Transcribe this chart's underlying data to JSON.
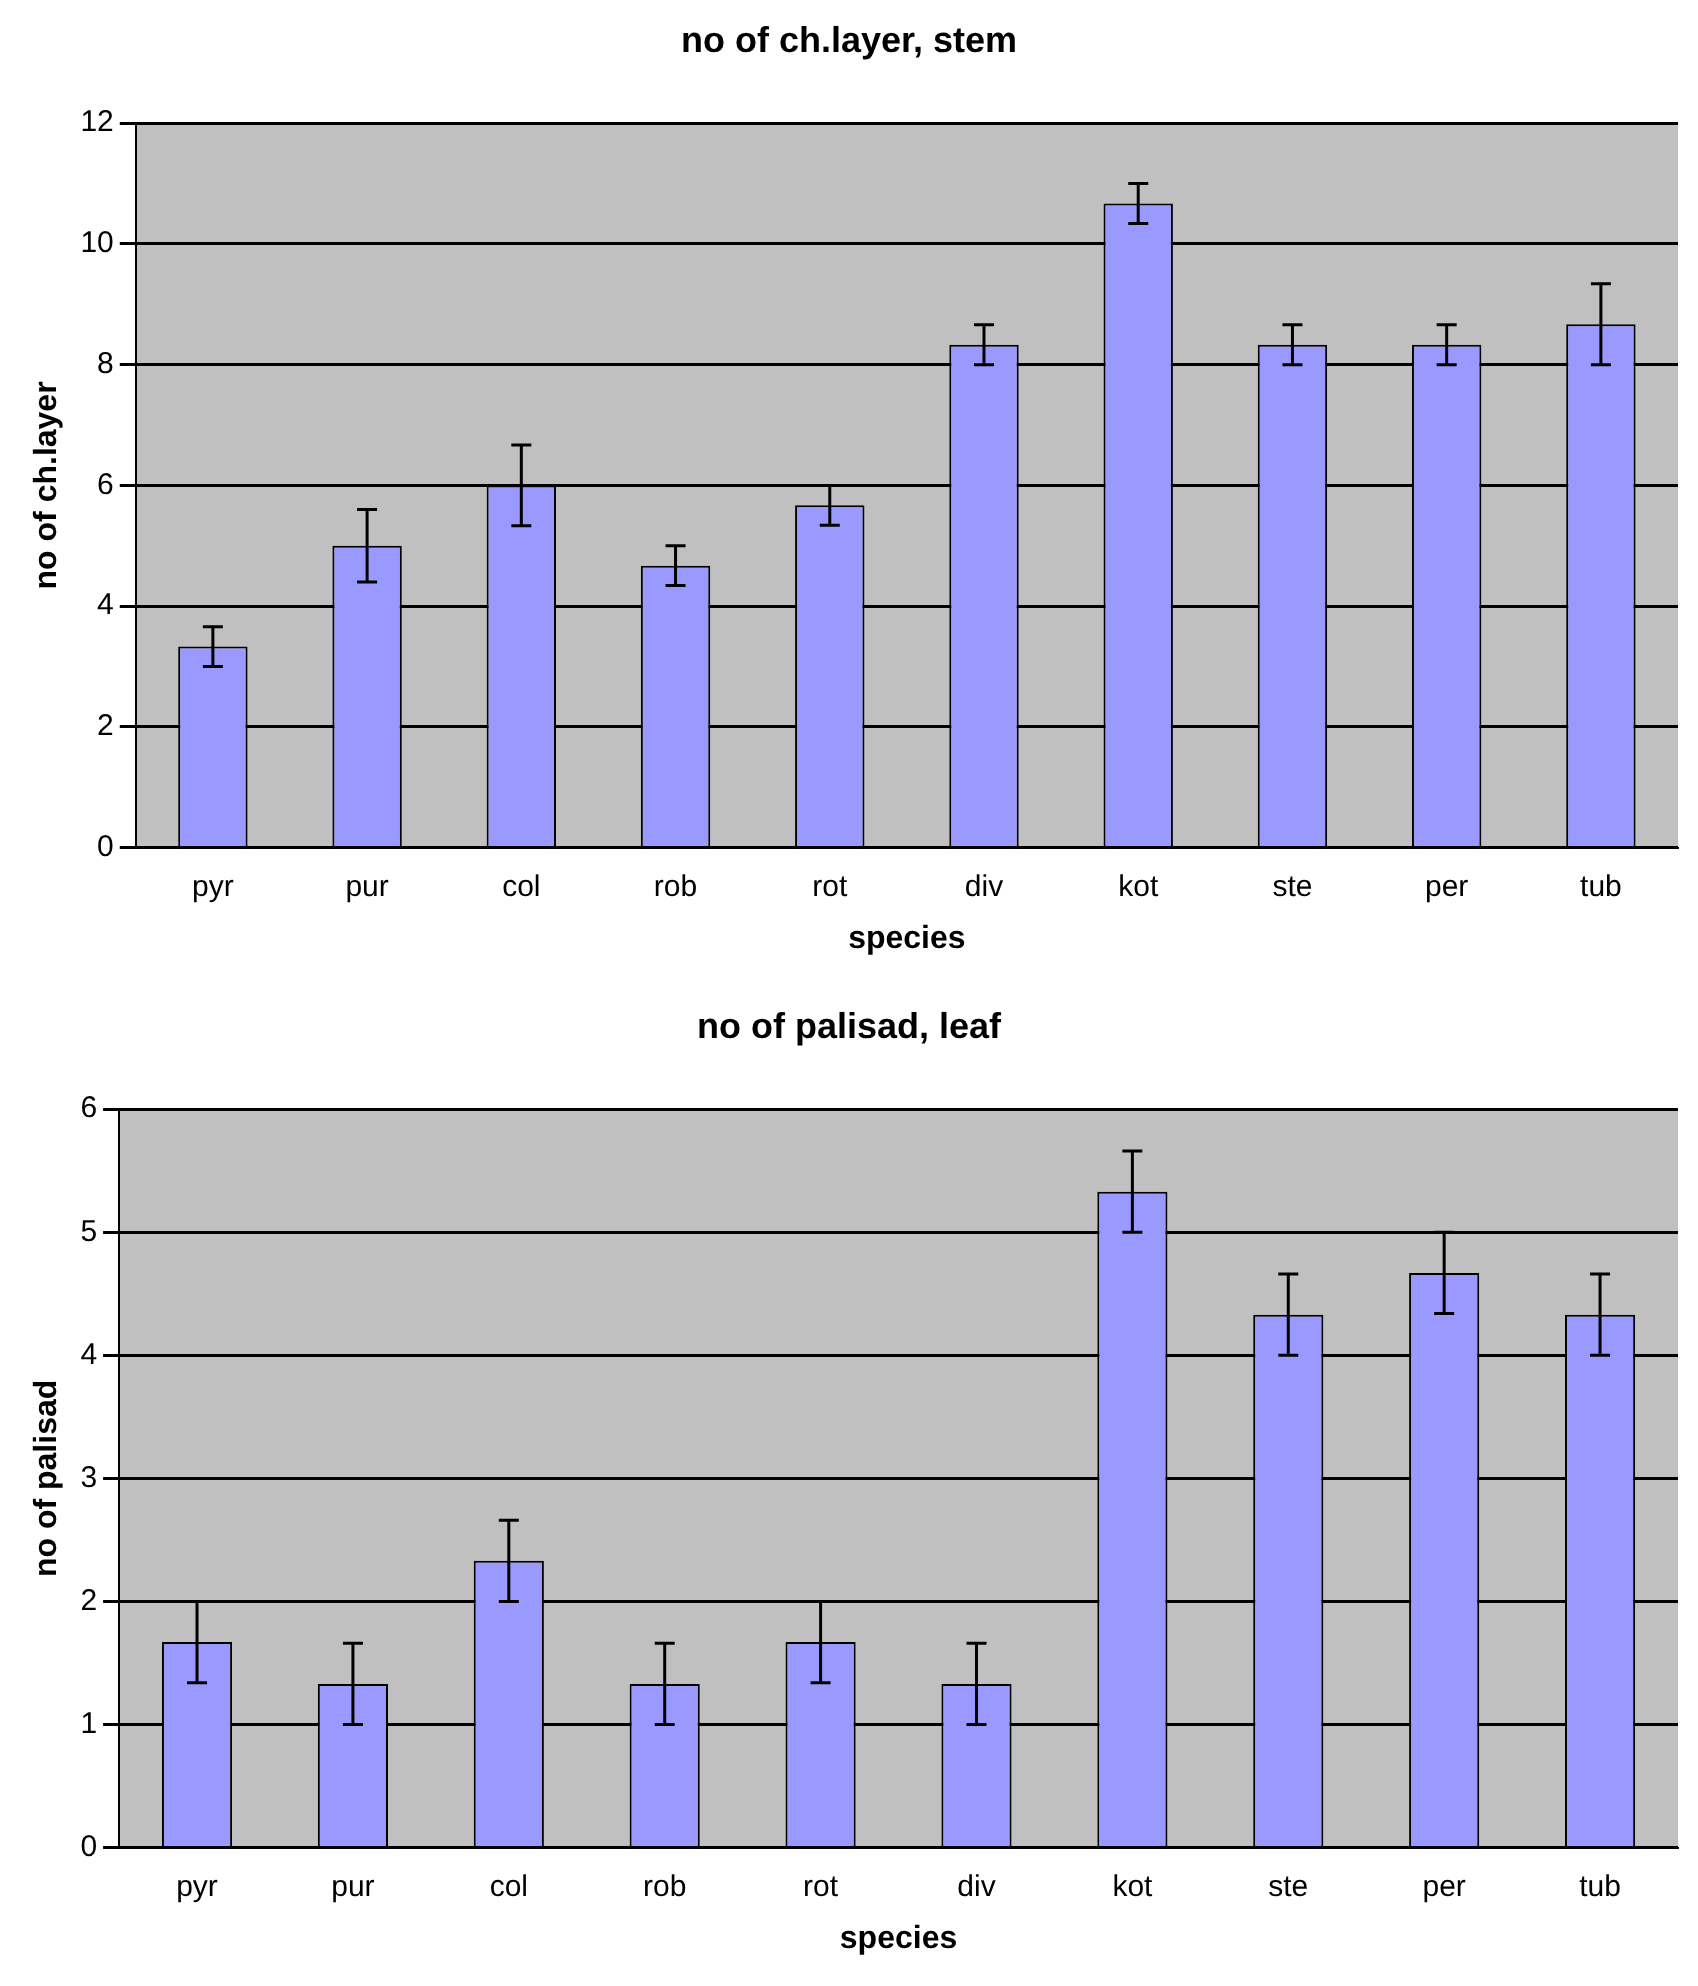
{
  "chart_data": [
    {
      "type": "bar",
      "title": "no of ch.layer, stem",
      "xlabel": "species",
      "ylabel": "no of ch.layer",
      "categories": [
        "pyr",
        "pur",
        "col",
        "rob",
        "rot",
        "div",
        "kot",
        "ste",
        "per",
        "tub"
      ],
      "values": [
        3.33,
        5.0,
        6.0,
        4.67,
        5.67,
        8.33,
        10.67,
        8.33,
        8.33,
        8.67
      ],
      "errors": [
        0.33,
        0.6,
        0.67,
        0.33,
        0.33,
        0.33,
        0.33,
        0.33,
        0.33,
        0.67
      ],
      "color": "#9999ff",
      "ylim": [
        0,
        12
      ],
      "yticks": [
        0,
        2,
        4,
        6,
        8,
        10,
        12
      ],
      "grid": "y",
      "legend": false
    },
    {
      "type": "bar",
      "title": "no of palisad, leaf",
      "xlabel": "species",
      "ylabel": "no of palisad",
      "categories": [
        "pyr",
        "pur",
        "col",
        "rob",
        "rot",
        "div",
        "kot",
        "ste",
        "per",
        "tub"
      ],
      "values": [
        1.67,
        1.33,
        2.33,
        1.33,
        1.67,
        1.33,
        5.33,
        4.33,
        4.67,
        4.33
      ],
      "errors": [
        0.33,
        0.33,
        0.33,
        0.33,
        0.33,
        0.33,
        0.33,
        0.33,
        0.33,
        0.33
      ],
      "color": "#9999ff",
      "ylim": [
        0,
        6
      ],
      "yticks": [
        0,
        1,
        2,
        3,
        4,
        5,
        6
      ],
      "grid": "y",
      "legend": false
    }
  ]
}
